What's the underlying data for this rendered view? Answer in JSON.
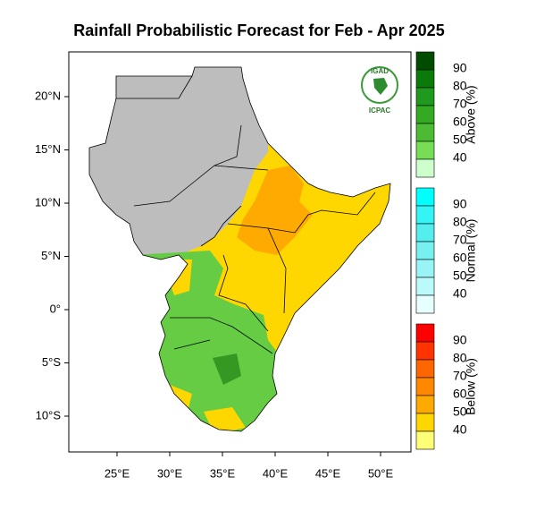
{
  "title": "Rainfall Probabilistic Forecast for Feb - Apr 2025",
  "lat_labels": [
    "20°N",
    "15°N",
    "10°N",
    "5°N",
    "0°",
    "5°S",
    "10°S"
  ],
  "lon_labels": [
    "25°E",
    "30°E",
    "35°E",
    "40°E",
    "45°E",
    "50°E"
  ],
  "logo": {
    "name": "IGAD",
    "center": "ICPAC"
  },
  "legend": [
    {
      "title": "Above (%)",
      "ticks": [
        "90",
        "80",
        "70",
        "60",
        "50",
        "40"
      ]
    },
    {
      "title": "Normal (%)",
      "ticks": [
        "90",
        "80",
        "70",
        "60",
        "50",
        "40"
      ]
    },
    {
      "title": "Below (%)",
      "ticks": [
        "90",
        "80",
        "70",
        "60",
        "50",
        "40"
      ]
    }
  ]
}
